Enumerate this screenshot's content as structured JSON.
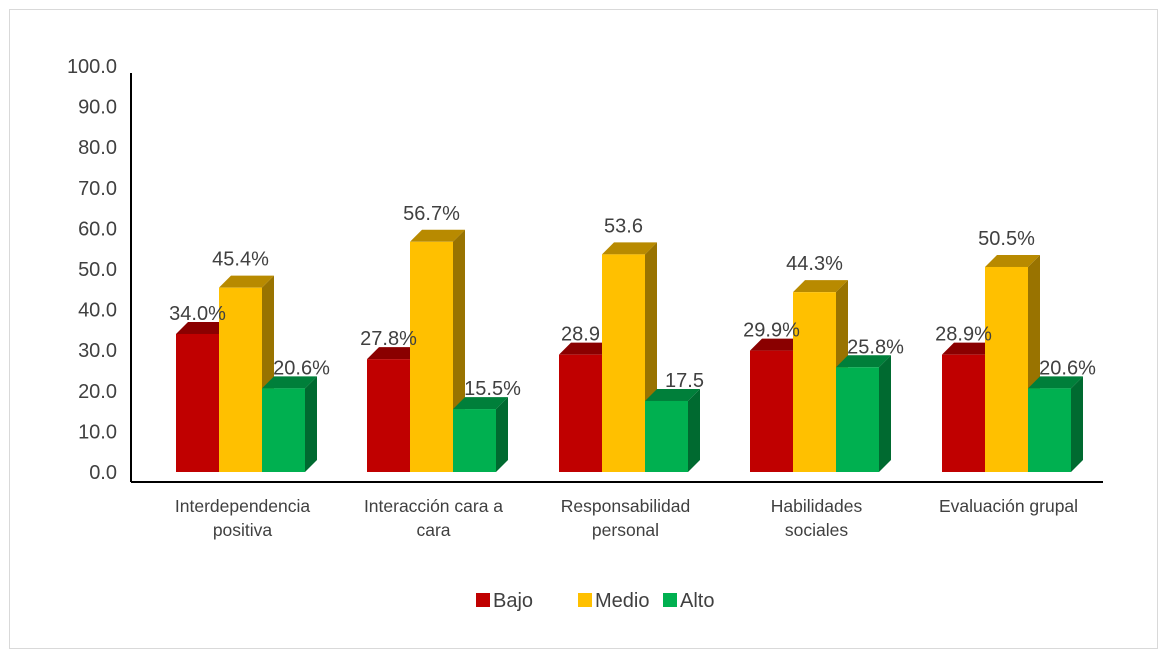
{
  "chart_data": {
    "type": "bar",
    "style": "3d-clustered-column",
    "categories": [
      [
        "Interdependencia",
        "positiva"
      ],
      [
        "Interacción cara a",
        "cara"
      ],
      [
        "Responsabilidad",
        "personal"
      ],
      [
        "Habilidades",
        "sociales"
      ],
      [
        "Evaluación grupal"
      ]
    ],
    "series": [
      {
        "name": "Bajo",
        "color": "#c00000",
        "values": [
          34.0,
          27.8,
          28.9,
          29.9,
          28.9
        ],
        "labels": [
          "34.0%",
          "27.8%",
          "28.9",
          "29.9%",
          "28.9%"
        ]
      },
      {
        "name": "Medio",
        "color": "#ffc000",
        "values": [
          45.4,
          56.7,
          53.6,
          44.3,
          50.5
        ],
        "labels": [
          "45.4%",
          "56.7%",
          "53.6",
          "44.3%",
          "50.5%"
        ]
      },
      {
        "name": "Alto",
        "color": "#00b050",
        "values": [
          20.6,
          15.5,
          17.5,
          25.8,
          20.6
        ],
        "labels": [
          "20.6%",
          "15.5%",
          "17.5",
          "25.8%",
          "20.6%"
        ]
      }
    ],
    "yticks": [
      "0.0",
      "10.0",
      "20.0",
      "30.0",
      "40.0",
      "50.0",
      "60.0",
      "70.0",
      "80.0",
      "90.0",
      "100.0"
    ],
    "ylim": [
      0,
      100
    ],
    "title": "",
    "xlabel": "",
    "ylabel": "",
    "grid": false,
    "legend_position": "bottom"
  }
}
